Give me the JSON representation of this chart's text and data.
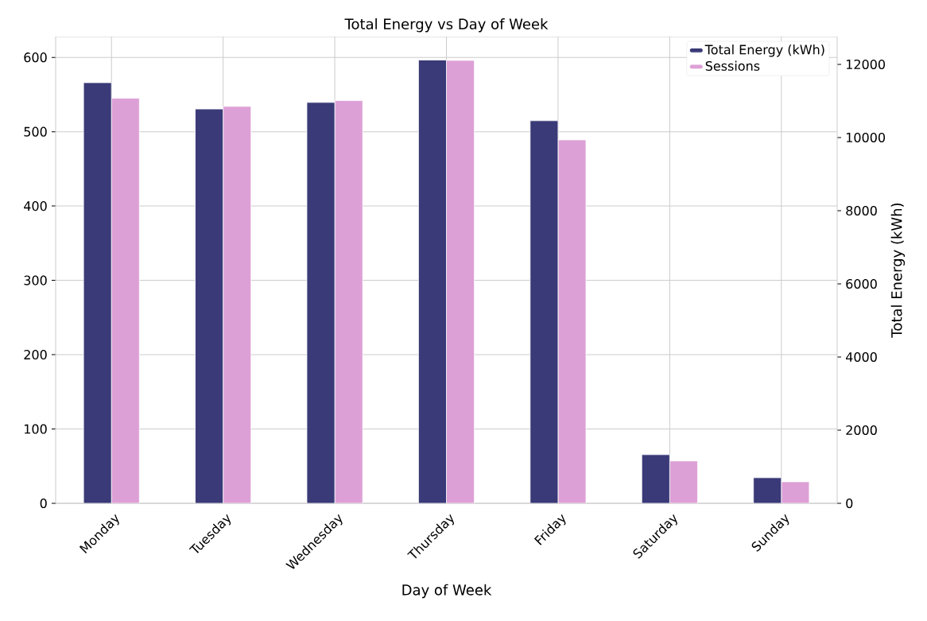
{
  "chart_data": {
    "type": "bar",
    "title": "Total Energy vs Day of Week",
    "xlabel": "Day of Week",
    "y2label": "Total Energy (kWh)",
    "categories": [
      "Monday",
      "Tuesday",
      "Wednesday",
      "Thursday",
      "Friday",
      "Saturday",
      "Sunday"
    ],
    "series": [
      {
        "name": "Total Energy (kWh)",
        "color": "#3a3a78",
        "axis": "y2",
        "values": [
          11500,
          10780,
          10960,
          12120,
          10460,
          1330,
          700
        ]
      },
      {
        "name": "Sessions",
        "color": "#dda0d6",
        "values": [
          545,
          534,
          542,
          596,
          489,
          57,
          29
        ]
      }
    ],
    "ylim": [
      0,
      628
    ],
    "yticks": [
      0,
      100,
      200,
      300,
      400,
      500,
      600
    ],
    "y2lim": [
      0,
      12760
    ],
    "y2ticks": [
      0,
      2000,
      4000,
      6000,
      8000,
      10000,
      12000
    ],
    "grid": true,
    "legend": "top right"
  }
}
